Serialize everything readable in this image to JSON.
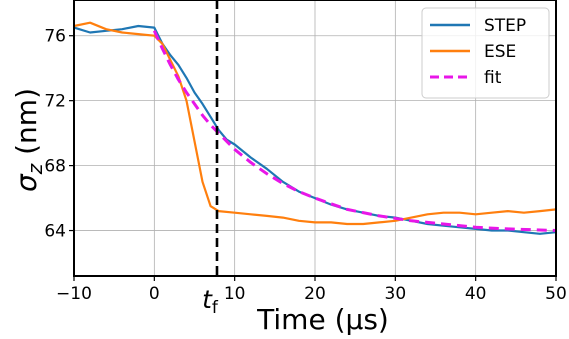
{
  "chart_data": {
    "type": "line",
    "xlabel": "Time (μs)",
    "ylabel_symbol": "σ",
    "ylabel_subscript": "z",
    "ylabel_unit": " (nm)",
    "xlim": [
      -10,
      50
    ],
    "ylim": [
      61.2,
      78.2
    ],
    "xticks": [
      -10,
      0,
      10,
      20,
      30,
      40,
      50
    ],
    "yticks": [
      64,
      68,
      72,
      76
    ],
    "grid": true,
    "legend_position": "top-right",
    "vline": {
      "x": 7.8,
      "label_main": "t",
      "label_sub": "f",
      "color": "#000000",
      "style": "dashed"
    },
    "series": [
      {
        "name": "STEP",
        "color": "#1f77b4",
        "style": "solid",
        "x": [
          -10,
          -8,
          -6,
          -4,
          -2,
          0,
          1,
          2,
          3,
          4,
          5,
          6,
          7,
          8,
          9,
          10,
          12,
          14,
          16,
          18,
          20,
          22,
          24,
          26,
          28,
          30,
          32,
          34,
          36,
          38,
          40,
          42,
          44,
          46,
          48,
          50
        ],
        "y": [
          76.5,
          76.2,
          76.3,
          76.4,
          76.6,
          76.5,
          75.5,
          74.8,
          74.2,
          73.4,
          72.5,
          71.8,
          71.0,
          70.2,
          69.6,
          69.3,
          68.5,
          67.8,
          67.0,
          66.4,
          66.0,
          65.6,
          65.3,
          65.1,
          64.9,
          64.8,
          64.6,
          64.4,
          64.3,
          64.2,
          64.1,
          64.0,
          64.0,
          63.9,
          63.8,
          63.9
        ]
      },
      {
        "name": "ESE",
        "color": "#ff7f0e",
        "style": "solid",
        "x": [
          -10,
          -8,
          -6,
          -4,
          -2,
          0,
          1,
          2,
          3,
          4,
          5,
          6,
          7,
          8,
          10,
          12,
          14,
          16,
          18,
          20,
          22,
          24,
          26,
          28,
          30,
          32,
          34,
          36,
          38,
          40,
          42,
          44,
          46,
          48,
          50
        ],
        "y": [
          76.6,
          76.8,
          76.4,
          76.2,
          76.1,
          76.0,
          75.5,
          74.5,
          73.5,
          72.0,
          69.5,
          67.0,
          65.5,
          65.2,
          65.1,
          65.0,
          64.9,
          64.8,
          64.6,
          64.5,
          64.5,
          64.4,
          64.4,
          64.5,
          64.6,
          64.8,
          65.0,
          65.1,
          65.1,
          65.0,
          65.1,
          65.2,
          65.1,
          65.2,
          65.3
        ]
      },
      {
        "name": "fit",
        "color": "#e816e8",
        "style": "dashed",
        "x": [
          0,
          1,
          2,
          3,
          4,
          5,
          6,
          7,
          8,
          10,
          12,
          14,
          16,
          18,
          20,
          24,
          28,
          32,
          36,
          40,
          44,
          50
        ],
        "y": [
          76.3,
          75.2,
          74.2,
          73.3,
          72.5,
          71.8,
          71.1,
          70.5,
          70.0,
          69.0,
          68.2,
          67.5,
          66.9,
          66.4,
          66.0,
          65.3,
          64.9,
          64.6,
          64.4,
          64.2,
          64.1,
          64.0
        ]
      }
    ]
  }
}
